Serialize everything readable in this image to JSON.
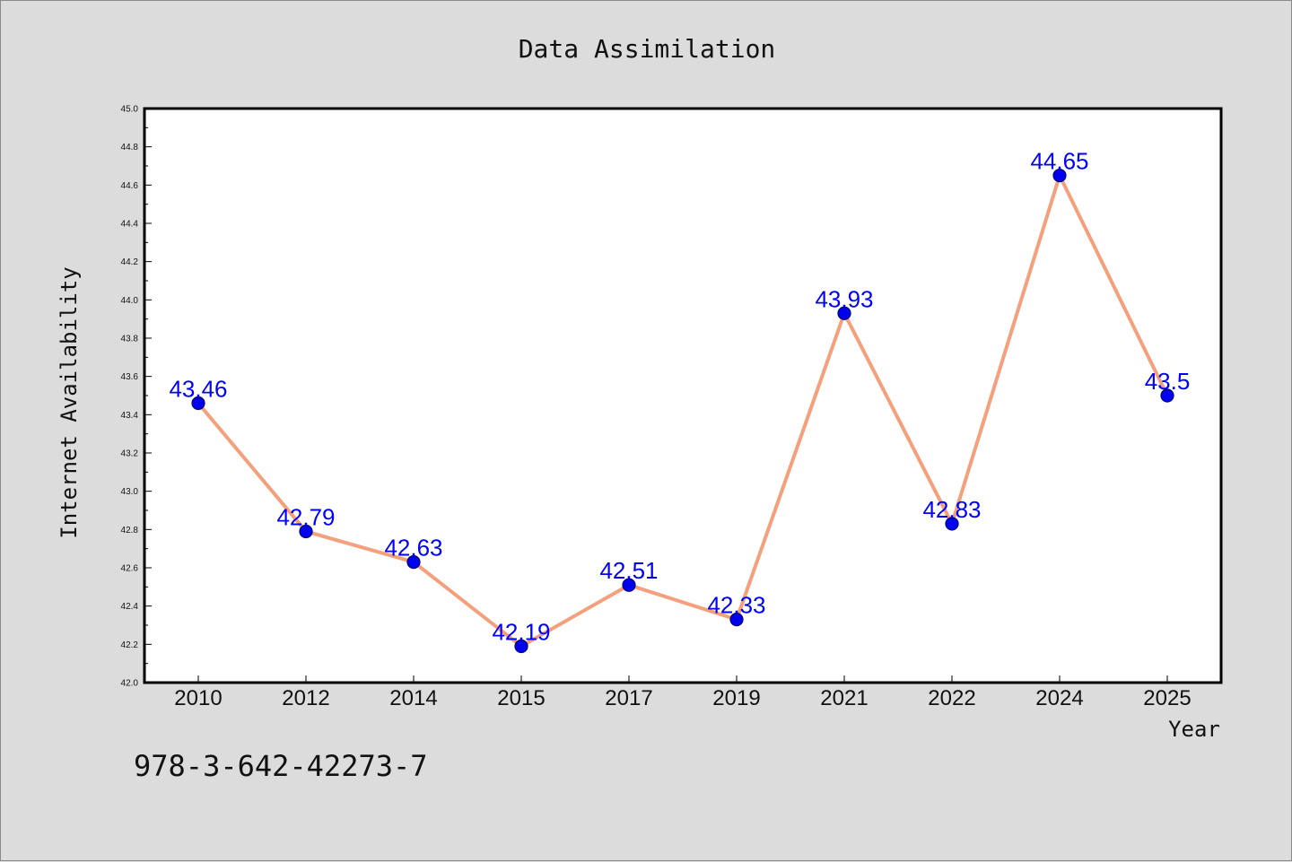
{
  "colors": {
    "background": "#dcdcdc",
    "plot_background": "#ffffff",
    "line": "#f4a07c",
    "marker": "#0000ee",
    "marker_edge": "#00006e",
    "data_label": "#0000ff",
    "axis": "#000000"
  },
  "footer": {
    "isbn": "978-3-642-42273-7"
  },
  "chart_data": {
    "type": "line",
    "title": "Data Assimilation",
    "xlabel": "Year",
    "ylabel": "Internet Availability",
    "categories": [
      "2010",
      "2012",
      "2014",
      "2015",
      "2017",
      "2019",
      "2021",
      "2022",
      "2024",
      "2025"
    ],
    "series": [
      {
        "values": [
          43.46,
          42.79,
          42.63,
          42.19,
          42.51,
          42.33,
          43.93,
          42.83,
          44.65,
          43.5
        ],
        "labels": [
          "43.46",
          "42.79",
          "42.63",
          "42.19",
          "42.51",
          "42.33",
          "43.93",
          "42.83",
          "44.65",
          "43.5"
        ]
      }
    ],
    "ylim": [
      42.0,
      45.0
    ],
    "yticks": [
      "42.0",
      "42.2",
      "42.4",
      "42.6",
      "42.8",
      "43.0",
      "43.2",
      "43.4",
      "43.6",
      "43.8",
      "44.0",
      "44.2",
      "44.4",
      "44.6",
      "44.8",
      "45.0"
    ],
    "grid": false,
    "legend": false
  }
}
